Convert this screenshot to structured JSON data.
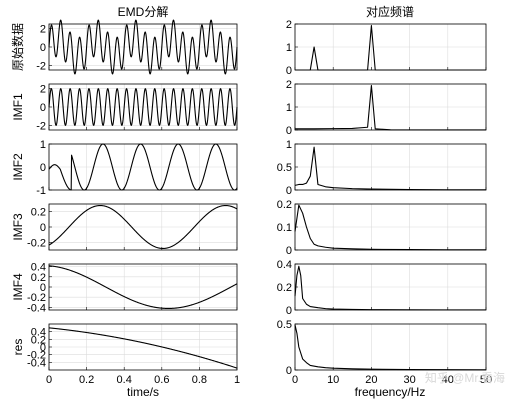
{
  "figure": {
    "left_title": "EMD分解",
    "right_title": "对应频谱",
    "left_xlabel": "time/s",
    "right_xlabel": "frequency/Hz",
    "watermark": "知乎 @Mr.看海"
  },
  "chart_data": [
    {
      "type": "line",
      "panel": "time",
      "row": 0,
      "ylabel": "原始数据",
      "xlim": [
        0,
        1
      ],
      "ylim": [
        -2.5,
        2.5
      ],
      "yticks": [
        -2,
        0,
        2
      ],
      "grid": true,
      "series": [
        {
          "kind": "sum",
          "components": [
            {
              "kind": "sine",
              "amp": 2,
              "freq": 20,
              "phase": 0
            },
            {
              "kind": "sine",
              "amp": 1,
              "freq": 5,
              "phase": 0
            }
          ]
        }
      ]
    },
    {
      "type": "line",
      "panel": "time",
      "row": 1,
      "ylabel": "IMF1",
      "xlim": [
        0,
        1
      ],
      "ylim": [
        -2.5,
        2.5
      ],
      "yticks": [
        -2,
        0,
        2
      ],
      "grid": true,
      "series": [
        {
          "kind": "sine",
          "amp": 2,
          "freq": 20,
          "phase": 0
        }
      ]
    },
    {
      "type": "line",
      "panel": "time",
      "row": 2,
      "ylabel": "IMF2",
      "xlim": [
        0,
        1
      ],
      "ylim": [
        -1,
        1
      ],
      "yticks": [
        -1,
        0,
        1
      ],
      "grid": true,
      "series": [
        {
          "kind": "imf2"
        }
      ]
    },
    {
      "type": "line",
      "panel": "time",
      "row": 3,
      "ylabel": "IMF3",
      "xlim": [
        0,
        1
      ],
      "ylim": [
        -0.3,
        0.3
      ],
      "yticks": [
        -0.2,
        0,
        0.2
      ],
      "grid": true,
      "series": [
        {
          "kind": "sine",
          "amp": 0.28,
          "freq": 1.5,
          "phase": -1.0
        }
      ]
    },
    {
      "type": "line",
      "panel": "time",
      "row": 4,
      "ylabel": "IMF4",
      "xlim": [
        0,
        1
      ],
      "ylim": [
        -0.45,
        0.45
      ],
      "yticks": [
        -0.4,
        -0.2,
        0,
        0.2,
        0.4
      ],
      "grid": true,
      "series": [
        {
          "kind": "cos",
          "amp": 0.42,
          "freq": 0.75,
          "phase": 0.15
        }
      ]
    },
    {
      "type": "line",
      "panel": "time",
      "row": 5,
      "ylabel": "res",
      "xlim": [
        0,
        1
      ],
      "ylim": [
        -0.6,
        0.6
      ],
      "yticks": [
        -0.4,
        -0.2,
        0,
        0.2,
        0.4
      ],
      "xticks": [
        0,
        0.2,
        0.4,
        0.6,
        0.8,
        1
      ],
      "grid": true,
      "series": [
        {
          "kind": "poly",
          "coef": [
            0.5,
            -0.5,
            -0.55
          ]
        }
      ]
    },
    {
      "type": "line",
      "panel": "freq",
      "row": 0,
      "xlim": [
        0,
        50
      ],
      "ylim": [
        0,
        2
      ],
      "yticks": [
        0,
        1,
        2
      ],
      "grid": true,
      "series": [
        {
          "x": [
            0,
            4,
            5,
            6,
            19,
            20,
            21,
            50
          ],
          "y": [
            0,
            0,
            1,
            0,
            0,
            1.93,
            0,
            0
          ]
        }
      ]
    },
    {
      "type": "line",
      "panel": "freq",
      "row": 1,
      "xlim": [
        0,
        50
      ],
      "ylim": [
        0,
        2
      ],
      "yticks": [
        0,
        1,
        2
      ],
      "grid": true,
      "series": [
        {
          "x": [
            0,
            5,
            10,
            15,
            19,
            20,
            21,
            25,
            30,
            40,
            50
          ],
          "y": [
            0.05,
            0.05,
            0.06,
            0.07,
            0.12,
            1.93,
            0.05,
            0.01,
            0.005,
            0.002,
            0.001
          ]
        }
      ]
    },
    {
      "type": "line",
      "panel": "freq",
      "row": 2,
      "xlim": [
        0,
        50
      ],
      "ylim": [
        0,
        1
      ],
      "yticks": [
        0,
        0.5,
        1
      ],
      "grid": true,
      "series": [
        {
          "x": [
            0,
            1,
            2,
            3,
            4,
            5,
            6,
            8,
            10,
            15,
            20,
            30,
            40,
            50
          ],
          "y": [
            0.1,
            0.12,
            0.12,
            0.15,
            0.3,
            0.93,
            0.12,
            0.07,
            0.05,
            0.03,
            0.02,
            0.01,
            0.005,
            0.003
          ]
        }
      ]
    },
    {
      "type": "line",
      "panel": "freq",
      "row": 3,
      "xlim": [
        0,
        50
      ],
      "ylim": [
        0,
        0.2
      ],
      "yticks": [
        0,
        0.1,
        0.2
      ],
      "grid": true,
      "series": [
        {
          "x": [
            0,
            1,
            2,
            3,
            4,
            5,
            6,
            8,
            10,
            15,
            20,
            30,
            40,
            50
          ],
          "y": [
            0.08,
            0.195,
            0.16,
            0.1,
            0.05,
            0.025,
            0.018,
            0.012,
            0.008,
            0.005,
            0.003,
            0.002,
            0.001,
            0.001
          ]
        }
      ]
    },
    {
      "type": "line",
      "panel": "freq",
      "row": 4,
      "xlim": [
        0,
        50
      ],
      "ylim": [
        0,
        0.4
      ],
      "yticks": [
        0,
        0.2,
        0.4
      ],
      "grid": true,
      "series": [
        {
          "x": [
            0,
            0.5,
            1,
            1.5,
            2,
            3,
            4,
            6,
            8,
            10,
            15,
            20,
            30,
            40,
            50
          ],
          "y": [
            0.12,
            0.3,
            0.38,
            0.3,
            0.1,
            0.05,
            0.03,
            0.02,
            0.012,
            0.008,
            0.005,
            0.003,
            0.002,
            0.001,
            0.001
          ]
        }
      ]
    },
    {
      "type": "line",
      "panel": "freq",
      "row": 5,
      "xlim": [
        0,
        50
      ],
      "ylim": [
        0,
        0.5
      ],
      "yticks": [
        0,
        0.5
      ],
      "xticks": [
        0,
        10,
        20,
        30,
        40,
        50
      ],
      "grid": true,
      "series": [
        {
          "x": [
            0,
            0.5,
            1,
            2,
            3,
            4,
            6,
            8,
            10,
            15,
            20,
            30,
            40,
            50
          ],
          "y": [
            0.49,
            0.4,
            0.25,
            0.12,
            0.08,
            0.05,
            0.035,
            0.025,
            0.02,
            0.013,
            0.009,
            0.005,
            0.003,
            0.002
          ]
        }
      ]
    }
  ]
}
